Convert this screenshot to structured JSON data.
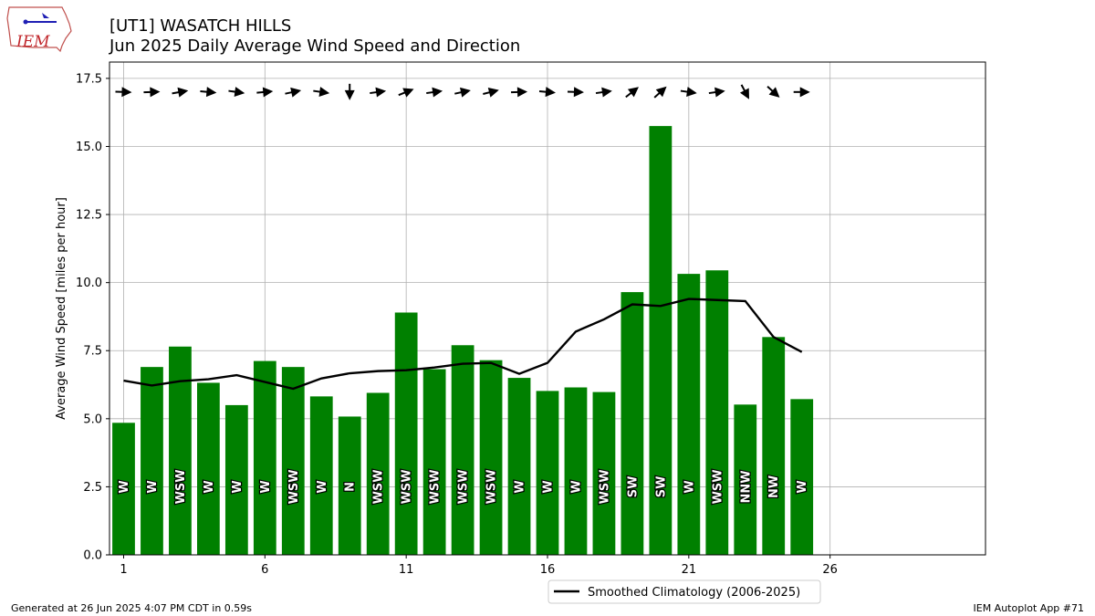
{
  "header": {
    "title": "[UT1] WASATCH HILLS",
    "subtitle": "Jun 2025 Daily Average Wind Speed and Direction"
  },
  "logo": {
    "text": "IEM"
  },
  "footer": {
    "left": "Generated at 26 Jun 2025 4:07 PM CDT in 0.59s",
    "right": "IEM Autoplot App #71"
  },
  "chart_data": {
    "type": "bar",
    "ylabel": "Average Wind Speed [miles per hour]",
    "xlabel": "",
    "xlim": [
      0.5,
      31.5
    ],
    "ylim": [
      0,
      18.1
    ],
    "grid": true,
    "xticks": [
      1,
      6,
      11,
      16,
      21,
      26
    ],
    "yticks": [
      0.0,
      2.5,
      5.0,
      7.5,
      10.0,
      12.5,
      15.0,
      17.5
    ],
    "days": [
      1,
      2,
      3,
      4,
      5,
      6,
      7,
      8,
      9,
      10,
      11,
      12,
      13,
      14,
      15,
      16,
      17,
      18,
      19,
      20,
      21,
      22,
      23,
      24,
      25
    ],
    "speed": [
      4.85,
      6.9,
      7.65,
      6.32,
      5.5,
      7.12,
      6.9,
      5.82,
      5.08,
      5.95,
      8.9,
      6.82,
      7.7,
      7.15,
      6.5,
      6.02,
      6.15,
      5.98,
      9.65,
      15.75,
      10.32,
      10.45,
      5.52,
      8.0,
      5.72
    ],
    "direction_labels": [
      "W",
      "W",
      "WSW",
      "W",
      "W",
      "W",
      "WSW",
      "W",
      "N",
      "WSW",
      "WSW",
      "WSW",
      "WSW",
      "WSW",
      "W",
      "W",
      "W",
      "WSW",
      "SW",
      "SW",
      "W",
      "WSW",
      "NNW",
      "NW",
      "W"
    ],
    "direction_deg": [
      272,
      268,
      260,
      275,
      278,
      265,
      258,
      278,
      0,
      262,
      248,
      262,
      258,
      256,
      268,
      275,
      272,
      262,
      232,
      228,
      278,
      262,
      332,
      312,
      270
    ],
    "bar_color": "#008000",
    "series": [
      {
        "name": "Smoothed Climatology (2006-2025)",
        "color": "#000000",
        "x": [
          1,
          2,
          3,
          4,
          5,
          6,
          7,
          8,
          9,
          10,
          11,
          12,
          13,
          14,
          15,
          16,
          17,
          18,
          19,
          20,
          21,
          22,
          23,
          24,
          25
        ],
        "values": [
          6.4,
          6.22,
          6.38,
          6.45,
          6.6,
          6.35,
          6.1,
          6.48,
          6.67,
          6.75,
          6.78,
          6.88,
          7.02,
          7.05,
          6.65,
          7.05,
          8.2,
          8.65,
          9.2,
          9.14,
          9.4,
          9.36,
          9.32,
          8.0,
          7.45
        ]
      }
    ],
    "legend": {
      "placement": "bottom-center"
    }
  }
}
